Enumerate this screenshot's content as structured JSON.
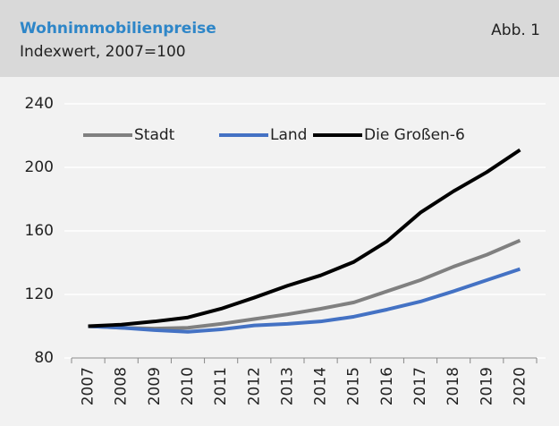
{
  "chart_data": {
    "type": "line",
    "title": "Wohnimmobilienpreise",
    "subtitle": "Indexwert, 2007=100",
    "annotation": "Abb. 1",
    "categories": [
      "2007",
      "2008",
      "2009",
      "2010",
      "2011",
      "2012",
      "2013",
      "2014",
      "2015",
      "2016",
      "2017",
      "2018",
      "2019",
      "2020"
    ],
    "series": [
      {
        "name": "Stadt",
        "color": "#808080",
        "values": [
          100,
          99,
          98.5,
          99,
          101.5,
          104.5,
          107.5,
          111,
          115,
          122,
          129,
          137.5,
          145,
          154
        ]
      },
      {
        "name": "Land",
        "color": "#4472c4",
        "values": [
          100,
          99,
          97.5,
          96.5,
          98,
          100.5,
          101.5,
          103,
          106,
          110.5,
          115.5,
          122,
          129,
          136
        ]
      },
      {
        "name": "Die Großen-6",
        "color": "#000000",
        "values": [
          100,
          101,
          103,
          105.5,
          111,
          118,
          125.5,
          132,
          140.5,
          153.5,
          171.5,
          185,
          197,
          211
        ]
      }
    ],
    "ylim": [
      80,
      240
    ],
    "yticks": [
      80,
      120,
      160,
      200,
      240
    ],
    "grid": true,
    "legend": "top"
  }
}
